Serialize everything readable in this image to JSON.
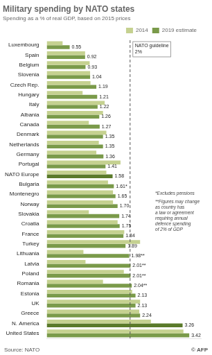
{
  "chart_data": {
    "type": "bar",
    "orientation": "horizontal",
    "title": "Military spending by NATO states",
    "subtitle": "Spending as a % of real GDP, based on 2015 prices",
    "source": "Source: NATO",
    "credit": "© AFP",
    "categories": [
      "Luxembourg",
      "Spain",
      "Belgium",
      "Slovenia",
      "Czech Rep.",
      "Hungary",
      "Italy",
      "Albania",
      "Canada",
      "Denmark",
      "Netherlands",
      "Germany",
      "Portugal",
      "NATO Europe",
      "Bulgaria",
      "Montenegro",
      "Norway",
      "Slovakia",
      "Croatia",
      "France",
      "Turkey",
      "Lithuania",
      "Latvia",
      "Poland",
      "Romania",
      "Estonia",
      "UK",
      "Greece",
      "N. America",
      "United States"
    ],
    "series": [
      {
        "name": "2014",
        "color": "#c5d190",
        "values": [
          0.38,
          0.92,
          1.03,
          1.04,
          1.05,
          0.86,
          1.39,
          1.35,
          1.01,
          1.43,
          1.25,
          1.19,
          1.77,
          1.43,
          1.47,
          1.59,
          1.59,
          1.01,
          1.7,
          1.86,
          2.24,
          0.88,
          0.93,
          1.85,
          1.35,
          2.05,
          2.24,
          2.22,
          2.5,
          3.28
        ]
      },
      {
        "name": "2019 estimate",
        "color": "#7a9a4a",
        "colors": [
          "#7a9a4a",
          "#7a9a4a",
          "#7a9a4a",
          "#7a9a4a",
          "#7a9a4a",
          "#7a9a4a",
          "#7a9a4a",
          "#7a9a4a",
          "#7a9a4a",
          "#7a9a4a",
          "#7a9a4a",
          "#7a9a4a",
          "#7a9a4a",
          "#5a7a2a",
          "#7a9a4a",
          "#7a9a4a",
          "#7a9a4a",
          "#7a9a4a",
          "#7a9a4a",
          "#7a9a4a",
          "#7a9a4a",
          "#7a9a4a",
          "#7a9a4a",
          "#7a9a4a",
          "#7a9a4a",
          "#7a9a4a",
          "#7a9a4a",
          "#7a9a4a",
          "#5a7a2a",
          "#7a9a4a"
        ],
        "data_labels": true,
        "values": [
          0.55,
          0.92,
          0.93,
          1.04,
          1.19,
          1.21,
          1.22,
          1.26,
          1.27,
          1.35,
          1.35,
          1.36,
          1.41,
          1.58,
          1.61,
          1.65,
          1.7,
          1.74,
          1.75,
          1.84,
          1.89,
          1.98,
          2.01,
          2.01,
          2.04,
          2.13,
          2.13,
          2.24,
          3.26,
          3.42
        ],
        "value_labels": [
          "0.55",
          "0.92",
          "0.93",
          "1.04",
          "1.19",
          "1.21",
          "1.22",
          "1.26",
          "1.27",
          "1.35",
          "1.35",
          "1.36",
          "1.41",
          "1.58",
          "1.61*",
          "1.65",
          "1.70",
          "1.74",
          "1.75",
          "1.84",
          "1.89",
          "1.98**",
          "2.01**",
          "2.01**",
          "2.04**",
          "2.13",
          "2.13",
          "2.24",
          "3.26",
          "3.42"
        ]
      }
    ],
    "reference_line": 2.0,
    "annotations": [
      "NATO guideline\n2%",
      "*Excludes pensions",
      "**Figures may change\nas country has\na law or agreement\nrequiring annual\ndefence spending\nof 2% of GDP"
    ],
    "xlim": [
      0,
      3.7
    ],
    "xticks": [],
    "tick_labels": "y",
    "grid": false,
    "legend": "upper right"
  }
}
